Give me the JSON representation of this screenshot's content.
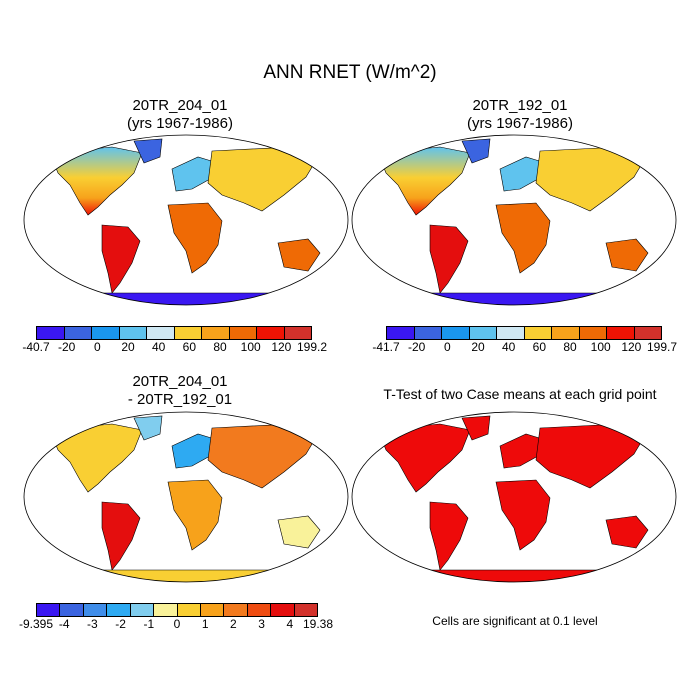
{
  "figure_title": "ANN RNET (W/m^2)",
  "panels": {
    "top_left": {
      "title": "20TR_204_01\n(yrs 1967-1986)"
    },
    "top_right": {
      "title": "20TR_192_01\n(yrs 1967-1986)"
    },
    "bottom_left": {
      "title": "20TR_204_01\n- 20TR_192_01"
    },
    "bottom_right": {
      "title": "T-Test of two Case means at each grid point"
    }
  },
  "colorbars": {
    "top_left": {
      "colors": [
        "#3a17f2",
        "#3b64e0",
        "#1a96ee",
        "#5fc3ee",
        "#cfe8f3",
        "#f9cf33",
        "#f7a21b",
        "#ef6a05",
        "#ef1304",
        "#d2312b"
      ],
      "labels": [
        "-40.7",
        "-20",
        "0",
        "20",
        "40",
        "60",
        "80",
        "100",
        "120",
        "199.2"
      ]
    },
    "top_right": {
      "colors": [
        "#3a17f2",
        "#3b64e0",
        "#1a96ee",
        "#5fc3ee",
        "#cfe8f3",
        "#f9cf33",
        "#f7a21b",
        "#ef6a05",
        "#ef1304",
        "#d2312b"
      ],
      "labels": [
        "-41.7",
        "-20",
        "0",
        "20",
        "40",
        "60",
        "80",
        "100",
        "120",
        "199.7"
      ]
    },
    "bottom_left": {
      "colors": [
        "#3a17f2",
        "#3b64e0",
        "#3f8de9",
        "#2eaaf2",
        "#80cdee",
        "#f9f29a",
        "#f9cf33",
        "#f7a21b",
        "#f27a1e",
        "#ef4c11",
        "#e40e0e",
        "#d2312b"
      ],
      "labels": [
        "-9.395",
        "-4",
        "-3",
        "-2",
        "-1",
        "0",
        "1",
        "2",
        "3",
        "4",
        "19.38"
      ]
    }
  },
  "significance_note": "Cells are significant at 0.1 level",
  "colors": {
    "ocean": "#ffffff",
    "significant": "#ee0a0a"
  }
}
